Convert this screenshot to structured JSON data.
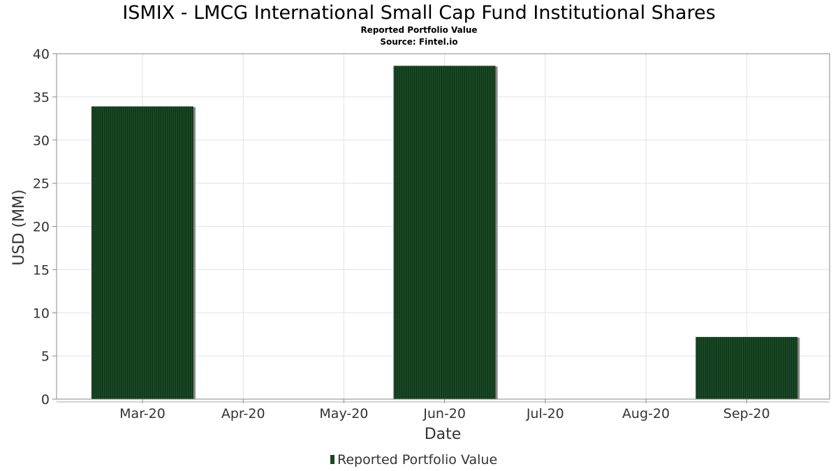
{
  "chart_data": {
    "type": "bar",
    "title": "ISMIX - LMCG International Small Cap Fund Institutional Shares",
    "subtitles": [
      "Reported Portfolio Value",
      "Source: Fintel.io"
    ],
    "xlabel": "Date",
    "ylabel": "USD (MM)",
    "categories": [
      "Mar-20",
      "Apr-20",
      "May-20",
      "Jun-20",
      "Jul-20",
      "Aug-20",
      "Sep-20"
    ],
    "series": [
      {
        "name": "Reported Portfolio Value",
        "color": "#1a4725",
        "values": [
          33.9,
          null,
          null,
          38.6,
          null,
          null,
          7.2
        ]
      }
    ],
    "ylim": [
      0,
      40
    ],
    "yticks": [
      0,
      5,
      10,
      15,
      20,
      25,
      30,
      35,
      40
    ],
    "grid": true,
    "legend_position": "bottom-center"
  }
}
